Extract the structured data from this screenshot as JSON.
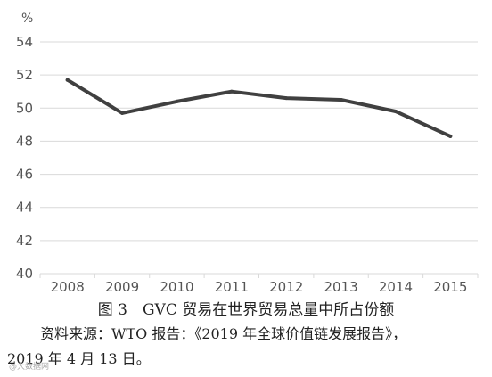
{
  "chart_data": {
    "type": "line",
    "categories": [
      "2008",
      "2009",
      "2010",
      "2011",
      "2012",
      "2013",
      "2014",
      "2015"
    ],
    "values": [
      51.7,
      49.7,
      50.4,
      51.0,
      50.6,
      50.5,
      49.8,
      48.3
    ],
    "ylabel": "%",
    "ylim": [
      40,
      54
    ],
    "yticks": [
      "40",
      "42",
      "44",
      "46",
      "48",
      "50",
      "52",
      "54"
    ],
    "grid": true,
    "line_color": "#404040"
  },
  "caption": {
    "title": "图 3　GVC 贸易在世界贸易总量中所占份额",
    "source_line1": "资料来源：WTO 报告：《2019 年全球价值链发展报告》，",
    "source_line2": "2019 年 4 月 13 日。"
  },
  "watermark": "@大数据网"
}
